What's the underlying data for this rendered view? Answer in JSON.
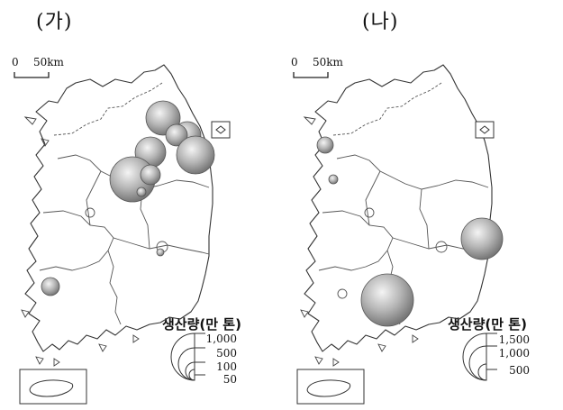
{
  "panels": [
    {
      "title": "(가)",
      "scale": {
        "zero": "0",
        "km": "50km"
      },
      "legend": {
        "title": "생산량(만 톤)",
        "values": [
          "1,000",
          "500",
          "100",
          "50"
        ]
      }
    },
    {
      "title": "(나)",
      "scale": {
        "zero": "0",
        "km": "50km"
      },
      "legend": {
        "title": "생산량(만 톤)",
        "values": [
          "1,500",
          "1,000",
          "500"
        ]
      }
    }
  ],
  "colors": {
    "bubble_light": "#f2f2f2",
    "bubble_mid": "#b8b8b8",
    "bubble_dark": "#7a7a7a",
    "outline": "#333333"
  }
}
